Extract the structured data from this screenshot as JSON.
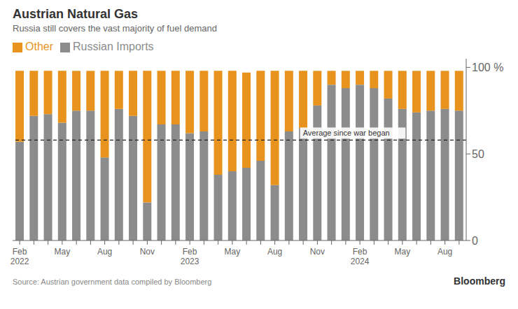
{
  "chart_data": {
    "type": "bar",
    "title": "Austrian Natural Gas",
    "subtitle": "Russia still covers the vast majority of fuel demand",
    "categories": [
      "Feb\n2022",
      null,
      null,
      "May",
      null,
      null,
      "Aug",
      null,
      null,
      "Nov",
      null,
      null,
      "Feb\n2023",
      null,
      null,
      "May",
      null,
      null,
      "Aug",
      null,
      null,
      "Nov",
      null,
      null,
      "Feb\n2024",
      null,
      null,
      "May",
      null,
      null,
      "Aug",
      null
    ],
    "series": [
      {
        "name": "Russian Imports",
        "color": "#8c8c8c",
        "values": [
          57,
          72,
          73,
          68,
          75,
          75,
          48,
          76,
          72,
          22,
          67,
          67,
          62,
          63,
          38,
          40,
          42,
          46,
          32,
          63,
          65,
          78,
          90,
          88,
          90,
          88,
          82,
          76,
          74,
          75,
          76,
          75
        ]
      },
      {
        "name": "Other",
        "color": "#e8931e",
        "values": [
          41,
          26,
          25,
          30,
          23,
          23,
          50,
          22,
          26,
          76,
          31,
          31,
          36,
          35,
          60,
          58,
          55,
          52,
          66,
          35,
          33,
          20,
          8,
          10,
          8,
          10,
          16,
          22,
          24,
          23,
          22,
          23
        ]
      }
    ],
    "stacked": true,
    "ylim": [
      0,
      105
    ],
    "yticks": [
      0,
      50,
      {
        "value": 100,
        "label": "100 %"
      }
    ],
    "grid": false,
    "legend": "upper left",
    "annotations": [
      {
        "text": "Average since war began",
        "y": 58
      }
    ],
    "source": "Source: Austrian government data compiled by Bloomberg",
    "credit": "Bloomberg"
  }
}
